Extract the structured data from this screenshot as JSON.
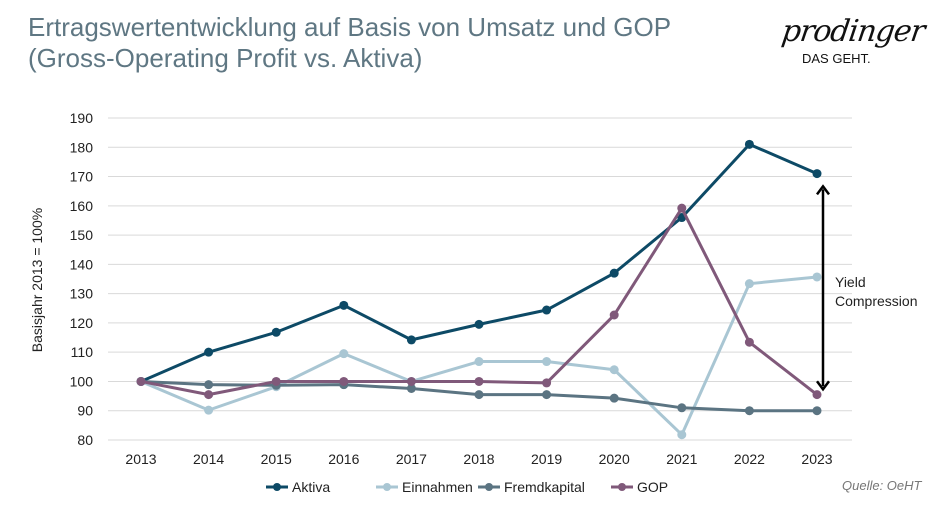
{
  "title_line1": "Ertragswertentwicklung auf Basis von Umsatz und GOP",
  "title_line2": "(Gross-Operating Profit vs. Aktiva)",
  "logo": {
    "word": "prodinger",
    "tagline": "DAS GEHT."
  },
  "source": "Quelle: OeHT",
  "chart_data": {
    "type": "line",
    "title": "",
    "xlabel": "",
    "ylabel": "Basisjahr 2013 = 100%",
    "ylim": [
      80,
      190
    ],
    "yticks": [
      80,
      90,
      100,
      110,
      120,
      130,
      140,
      150,
      160,
      170,
      180,
      190
    ],
    "grid": true,
    "legend_position": "bottom",
    "categories": [
      "2013",
      "2014",
      "2015",
      "2016",
      "2017",
      "2018",
      "2019",
      "2020",
      "2021",
      "2022",
      "2023"
    ],
    "series": [
      {
        "name": "Aktiva",
        "color": "#0d4a66",
        "values": [
          100,
          110,
          116.8,
          126,
          114.2,
          119.5,
          124.4,
          137,
          156,
          181,
          171
        ]
      },
      {
        "name": "Einnahmen",
        "color": "#a9c6d3",
        "values": [
          100,
          90.2,
          98.2,
          109.5,
          100,
          106.8,
          106.8,
          104,
          81.8,
          133.4,
          135.7
        ]
      },
      {
        "name": "Fremdkapital",
        "color": "#5b7482",
        "values": [
          100,
          98.9,
          98.7,
          98.9,
          97.6,
          95.5,
          95.5,
          94.3,
          91,
          90,
          90
        ]
      },
      {
        "name": "GOP",
        "color": "#80597a",
        "values": [
          100,
          95.5,
          100,
          100,
          100,
          100,
          99.5,
          122.7,
          159.2,
          113.4,
          95.5
        ]
      }
    ],
    "annotation": {
      "text_line1": "Yield",
      "text_line2": "Compression",
      "from_value": 167,
      "to_value": 97,
      "at_category": "2023"
    }
  }
}
